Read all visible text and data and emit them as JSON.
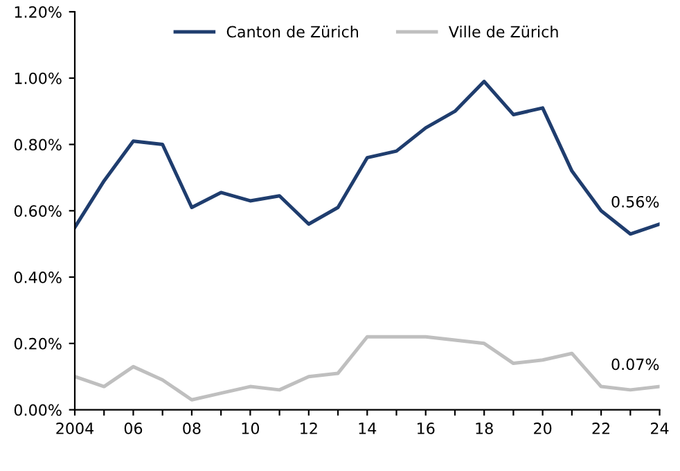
{
  "chart_data": {
    "type": "line",
    "x": [
      2004,
      2005,
      2006,
      2007,
      2008,
      2009,
      2010,
      2011,
      2012,
      2013,
      2014,
      2015,
      2016,
      2017,
      2018,
      2019,
      2020,
      2021,
      2022,
      2023,
      2024
    ],
    "series": [
      {
        "name": "Canton de Zürich",
        "color": "#1f3d6e",
        "values": [
          0.55,
          0.69,
          0.81,
          0.8,
          0.61,
          0.655,
          0.63,
          0.645,
          0.56,
          0.61,
          0.76,
          0.78,
          0.85,
          0.9,
          0.99,
          0.89,
          0.91,
          0.72,
          0.6,
          0.53,
          0.56
        ]
      },
      {
        "name": "Ville de Zürich",
        "color": "#bfbfbf",
        "values": [
          0.1,
          0.07,
          0.13,
          0.09,
          0.03,
          0.05,
          0.07,
          0.06,
          0.1,
          0.11,
          0.22,
          0.22,
          0.22,
          0.21,
          0.2,
          0.14,
          0.15,
          0.17,
          0.07,
          0.06,
          0.07
        ]
      }
    ],
    "xlim": [
      2004,
      2024
    ],
    "xticks": [
      {
        "value": 2004,
        "label": "2004"
      },
      {
        "value": 2005,
        "label": null
      },
      {
        "value": 2006,
        "label": "06"
      },
      {
        "value": 2007,
        "label": null
      },
      {
        "value": 2008,
        "label": "08"
      },
      {
        "value": 2009,
        "label": null
      },
      {
        "value": 2010,
        "label": "10"
      },
      {
        "value": 2011,
        "label": null
      },
      {
        "value": 2012,
        "label": "12"
      },
      {
        "value": 2013,
        "label": null
      },
      {
        "value": 2014,
        "label": "14"
      },
      {
        "value": 2015,
        "label": null
      },
      {
        "value": 2016,
        "label": "16"
      },
      {
        "value": 2017,
        "label": null
      },
      {
        "value": 2018,
        "label": "18"
      },
      {
        "value": 2019,
        "label": null
      },
      {
        "value": 2020,
        "label": "20"
      },
      {
        "value": 2021,
        "label": null
      },
      {
        "value": 2022,
        "label": "22"
      },
      {
        "value": 2023,
        "label": null
      },
      {
        "value": 2024,
        "label": "24"
      }
    ],
    "ylim": [
      0,
      1.2
    ],
    "yticks": [
      {
        "value": 0,
        "label": "0.00%"
      },
      {
        "value": 0.2,
        "label": "0.20%"
      },
      {
        "value": 0.4,
        "label": "0.40%"
      },
      {
        "value": 0.6,
        "label": "0.60%"
      },
      {
        "value": 0.8,
        "label": "0.80%"
      },
      {
        "value": 1.0,
        "label": "1.00%"
      },
      {
        "value": 1.2,
        "label": "1.20%"
      }
    ],
    "annotations": [
      {
        "text": "0.56%",
        "x": 2024,
        "y": 0.56
      },
      {
        "text": "0.07%",
        "x": 2024,
        "y": 0.07
      }
    ],
    "legend": "top",
    "grid": false,
    "line_style": "solid"
  }
}
